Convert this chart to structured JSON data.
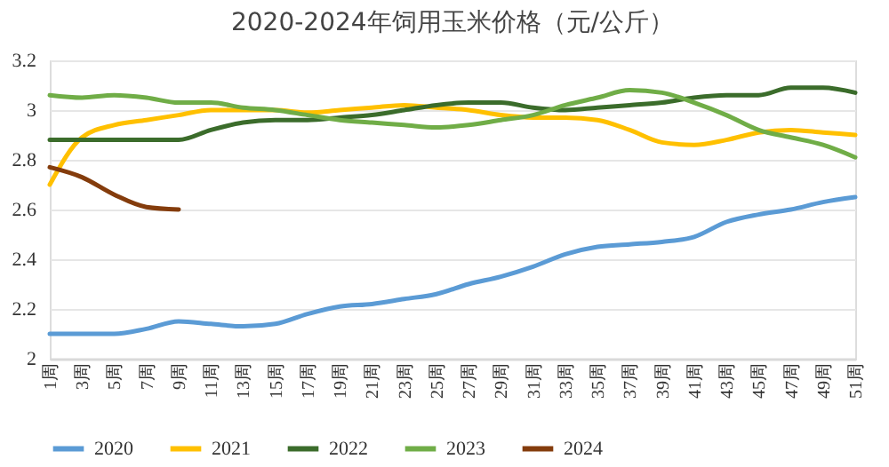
{
  "chart_data": {
    "type": "line",
    "title": "2020-2024年饲用玉米价格（元/公斤）",
    "categories": [
      "1周",
      "3周",
      "5周",
      "7周",
      "9周",
      "11周",
      "13周",
      "15周",
      "17周",
      "19周",
      "21周",
      "23周",
      "25周",
      "27周",
      "29周",
      "31周",
      "33周",
      "35周",
      "37周",
      "39周",
      "41周",
      "43周",
      "45周",
      "47周",
      "49周",
      "51周"
    ],
    "series": [
      {
        "name": "2020",
        "color": "#5b9bd5",
        "values": [
          2.1,
          2.1,
          2.1,
          2.12,
          2.15,
          2.14,
          2.13,
          2.14,
          2.18,
          2.21,
          2.22,
          2.24,
          2.26,
          2.3,
          2.33,
          2.37,
          2.42,
          2.45,
          2.46,
          2.47,
          2.49,
          2.55,
          2.58,
          2.6,
          2.63,
          2.65
        ]
      },
      {
        "name": "2021",
        "color": "#ffc000",
        "values": [
          2.7,
          2.89,
          2.94,
          2.96,
          2.98,
          3.0,
          3.0,
          3.0,
          2.99,
          3.0,
          3.01,
          3.02,
          3.01,
          3.0,
          2.98,
          2.97,
          2.97,
          2.96,
          2.92,
          2.87,
          2.86,
          2.88,
          2.91,
          2.92,
          2.91,
          2.9
        ]
      },
      {
        "name": "2022",
        "color": "#3b6c2b",
        "values": [
          2.88,
          2.88,
          2.88,
          2.88,
          2.88,
          2.92,
          2.95,
          2.96,
          2.96,
          2.97,
          2.98,
          3.0,
          3.02,
          3.03,
          3.03,
          3.01,
          3.0,
          3.01,
          3.02,
          3.03,
          3.05,
          3.06,
          3.06,
          3.09,
          3.09,
          3.07
        ]
      },
      {
        "name": "2023",
        "color": "#70ad47",
        "values": [
          3.06,
          3.05,
          3.06,
          3.05,
          3.03,
          3.03,
          3.01,
          3.0,
          2.98,
          2.96,
          2.95,
          2.94,
          2.93,
          2.94,
          2.96,
          2.98,
          3.02,
          3.05,
          3.08,
          3.07,
          3.03,
          2.98,
          2.92,
          2.89,
          2.86,
          2.81
        ]
      },
      {
        "name": "2024",
        "color": "#843c0c",
        "values": [
          2.77,
          2.73,
          2.66,
          2.61,
          2.6,
          null,
          null,
          null,
          null,
          null,
          null,
          null,
          null,
          null,
          null,
          null,
          null,
          null,
          null,
          null,
          null,
          null,
          null,
          null,
          null,
          null
        ]
      }
    ],
    "ylim": [
      2,
      3.2
    ],
    "yticks": [
      2,
      2.2,
      2.4,
      2.6,
      2.8,
      3,
      3.2
    ],
    "grid": "y",
    "legend": "bottom"
  }
}
